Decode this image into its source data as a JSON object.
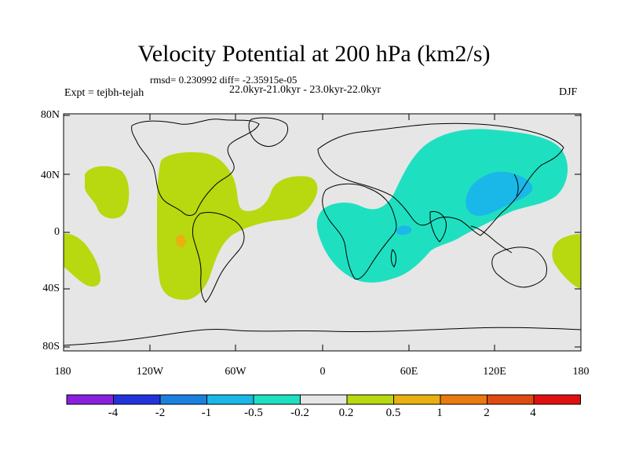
{
  "title": "Velocity Potential at 200 hPa (km2/s)",
  "stats": "rmsd= 0.230992 diff= -2.35915e-05",
  "period": "22.0kyr-21.0kyr - 23.0kyr-22.0kyr",
  "expt": "Expt = tejbh-tejah",
  "season": "DJF",
  "lat_labels": [
    "80N",
    "40N",
    "0",
    "40S",
    "80S"
  ],
  "lon_labels": [
    "180",
    "120W",
    "60W",
    "0",
    "60E",
    "120E",
    "180"
  ],
  "colorbar": {
    "labels": [
      "-4",
      "-2",
      "-1",
      "-0.5",
      "-0.2",
      "0.2",
      "0.5",
      "1",
      "2",
      "4"
    ],
    "colors": [
      "#8a1fe0",
      "#2233dd",
      "#1a80e0",
      "#1ab8e8",
      "#1ee0c0",
      "#e6e6e6",
      "#b8d810",
      "#e8b010",
      "#e87a10",
      "#e04a10",
      "#e01010"
    ]
  },
  "map_colors": {
    "background": "#e6e6e6",
    "positive_weak": "#b8d810",
    "positive_mid": "#e8b010",
    "negative_weak": "#1ee0c0",
    "negative_mid": "#1ab8e8"
  }
}
